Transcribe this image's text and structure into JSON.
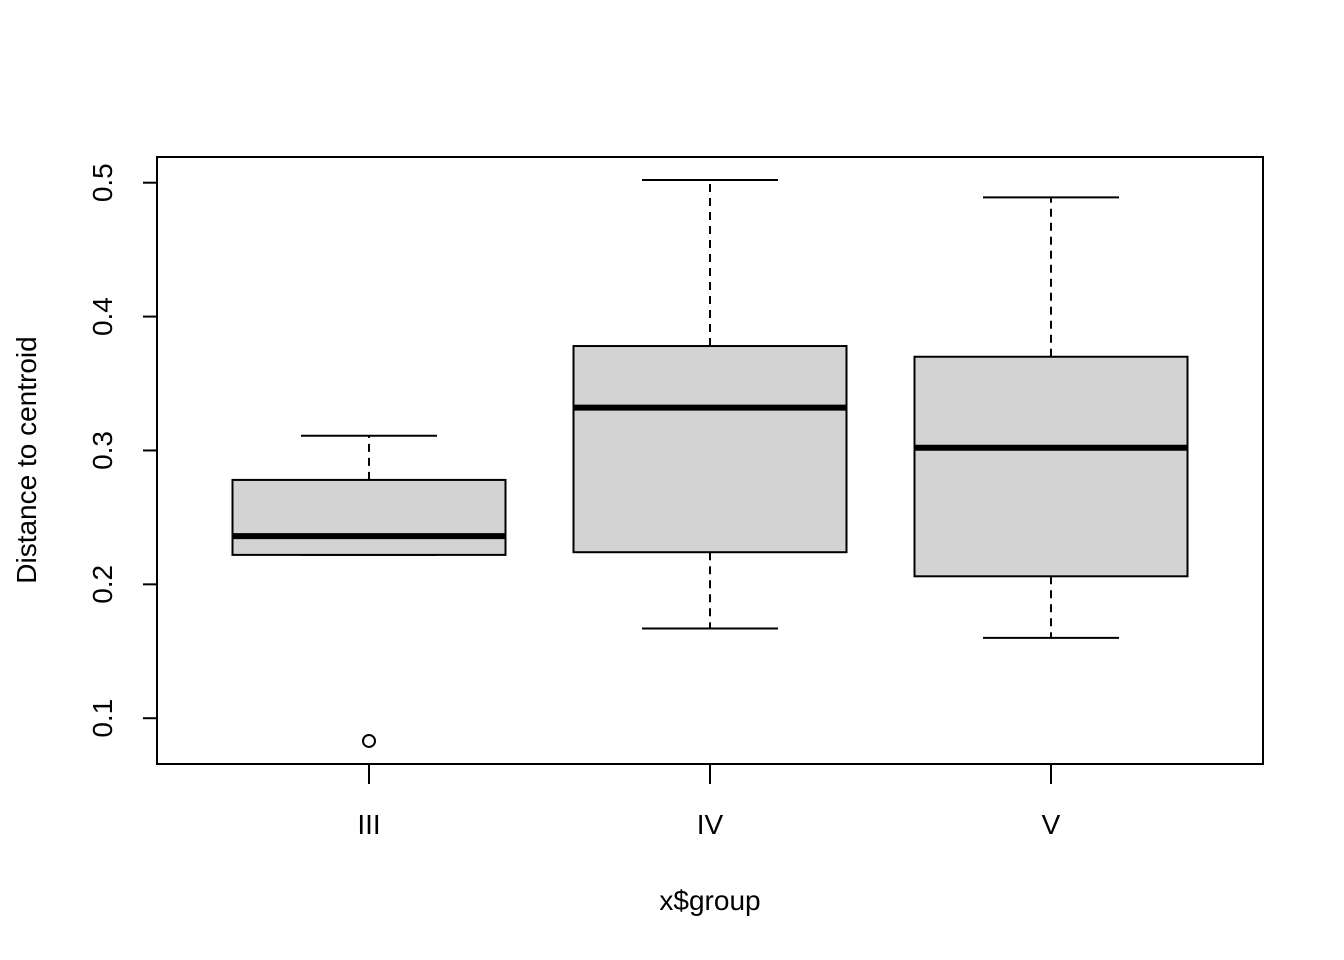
{
  "chart_data": {
    "type": "boxplot",
    "title": "",
    "xlabel": "x$group",
    "ylabel": "Distance to centroid",
    "categories": [
      "III",
      "IV",
      "V"
    ],
    "boxes": [
      {
        "name": "III",
        "whisker_low": 0.222,
        "q1": 0.222,
        "median": 0.236,
        "q3": 0.278,
        "whisker_high": 0.311,
        "outliers": [
          0.083
        ]
      },
      {
        "name": "IV",
        "whisker_low": 0.167,
        "q1": 0.224,
        "median": 0.332,
        "q3": 0.378,
        "whisker_high": 0.502,
        "outliers": []
      },
      {
        "name": "V",
        "whisker_low": 0.16,
        "q1": 0.206,
        "median": 0.302,
        "q3": 0.37,
        "whisker_high": 0.489,
        "outliers": []
      }
    ],
    "yticks": [
      0.1,
      0.2,
      0.3,
      0.4,
      0.5
    ],
    "ytick_labels": [
      "0.1",
      "0.2",
      "0.3",
      "0.4",
      "0.5"
    ],
    "ylim": [
      0.0658,
      0.5192
    ],
    "grid": false,
    "legend": "none",
    "box_fill": "#d3d3d3"
  }
}
